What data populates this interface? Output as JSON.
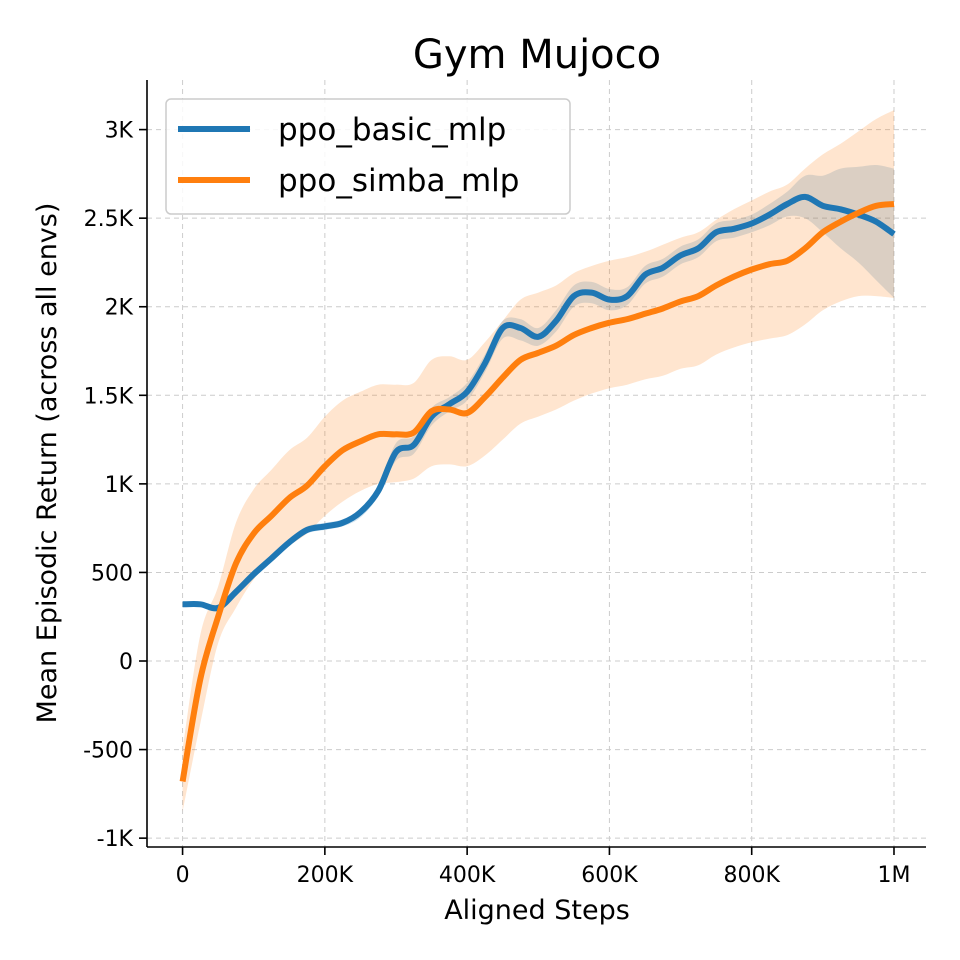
{
  "chart_data": {
    "type": "line",
    "title": "Gym Mujoco",
    "xlabel": "Aligned Steps",
    "ylabel": "Mean Episodic Return (across all envs)",
    "xlim": [
      -50000,
      1045000
    ],
    "ylim": [
      -1050,
      3280
    ],
    "x_ticks": [
      0,
      200000,
      400000,
      600000,
      800000,
      1000000
    ],
    "x_tick_labels": [
      "0",
      "200K",
      "400K",
      "600K",
      "800K",
      "1M"
    ],
    "y_ticks": [
      -1000,
      -500,
      0,
      500,
      1000,
      1500,
      2000,
      2500,
      3000
    ],
    "y_tick_labels": [
      "-1K",
      "-500",
      "0",
      "500",
      "1K",
      "1.5K",
      "2K",
      "2.5K",
      "3K"
    ],
    "grid": true,
    "legend_position": "top-left",
    "series": [
      {
        "name": "ppo_basic_mlp",
        "color": "#1f77b4",
        "x": [
          0,
          25000,
          50000,
          75000,
          100000,
          125000,
          150000,
          175000,
          200000,
          225000,
          250000,
          275000,
          300000,
          325000,
          350000,
          375000,
          400000,
          425000,
          450000,
          475000,
          500000,
          525000,
          550000,
          575000,
          600000,
          625000,
          650000,
          675000,
          700000,
          725000,
          750000,
          775000,
          800000,
          825000,
          850000,
          875000,
          900000,
          925000,
          950000,
          975000,
          1000000
        ],
        "y": [
          320,
          320,
          300,
          390,
          490,
          580,
          670,
          740,
          760,
          780,
          840,
          960,
          1180,
          1220,
          1380,
          1450,
          1520,
          1680,
          1880,
          1880,
          1830,
          1920,
          2060,
          2080,
          2040,
          2060,
          2180,
          2220,
          2290,
          2330,
          2420,
          2440,
          2470,
          2520,
          2580,
          2620,
          2570,
          2550,
          2520,
          2480,
          2410
        ],
        "band_lower": [
          320,
          320,
          290,
          370,
          470,
          560,
          650,
          720,
          740,
          760,
          810,
          930,
          1130,
          1170,
          1330,
          1410,
          1470,
          1630,
          1820,
          1810,
          1780,
          1860,
          2000,
          2020,
          1980,
          2010,
          2130,
          2170,
          2240,
          2280,
          2370,
          2390,
          2420,
          2460,
          2510,
          2500,
          2420,
          2330,
          2250,
          2150,
          2050
        ],
        "band_upper": [
          320,
          320,
          310,
          410,
          510,
          600,
          690,
          760,
          780,
          800,
          860,
          990,
          1230,
          1270,
          1430,
          1490,
          1570,
          1730,
          1920,
          1930,
          1880,
          1980,
          2120,
          2140,
          2100,
          2110,
          2230,
          2270,
          2340,
          2380,
          2470,
          2490,
          2520,
          2580,
          2650,
          2740,
          2740,
          2780,
          2790,
          2800,
          2780
        ]
      },
      {
        "name": "ppo_simba_mlp",
        "color": "#ff7f0e",
        "x": [
          0,
          25000,
          50000,
          75000,
          100000,
          125000,
          150000,
          175000,
          200000,
          225000,
          250000,
          275000,
          300000,
          325000,
          350000,
          375000,
          400000,
          425000,
          450000,
          475000,
          500000,
          525000,
          550000,
          575000,
          600000,
          625000,
          650000,
          675000,
          700000,
          725000,
          750000,
          775000,
          800000,
          825000,
          850000,
          875000,
          900000,
          925000,
          950000,
          975000,
          1000000
        ],
        "y": [
          -680,
          -100,
          250,
          550,
          720,
          820,
          920,
          990,
          1100,
          1190,
          1240,
          1280,
          1280,
          1290,
          1410,
          1420,
          1400,
          1490,
          1600,
          1700,
          1740,
          1780,
          1840,
          1880,
          1910,
          1930,
          1960,
          1990,
          2030,
          2060,
          2120,
          2170,
          2210,
          2240,
          2260,
          2330,
          2420,
          2480,
          2530,
          2570,
          2580
        ],
        "band_lower": [
          -850,
          -350,
          100,
          300,
          460,
          560,
          650,
          720,
          820,
          900,
          960,
          1000,
          1010,
          1030,
          1100,
          1110,
          1100,
          1160,
          1250,
          1340,
          1380,
          1420,
          1470,
          1510,
          1540,
          1560,
          1590,
          1610,
          1650,
          1670,
          1730,
          1770,
          1800,
          1820,
          1840,
          1900,
          1980,
          2030,
          2060,
          2060,
          2050
        ],
        "band_upper": [
          -500,
          150,
          420,
          780,
          970,
          1080,
          1190,
          1260,
          1380,
          1470,
          1520,
          1560,
          1560,
          1570,
          1700,
          1720,
          1700,
          1800,
          1920,
          2040,
          2080,
          2120,
          2190,
          2230,
          2260,
          2280,
          2310,
          2350,
          2390,
          2420,
          2490,
          2550,
          2600,
          2650,
          2690,
          2780,
          2860,
          2920,
          2990,
          3060,
          3110
        ]
      }
    ]
  }
}
